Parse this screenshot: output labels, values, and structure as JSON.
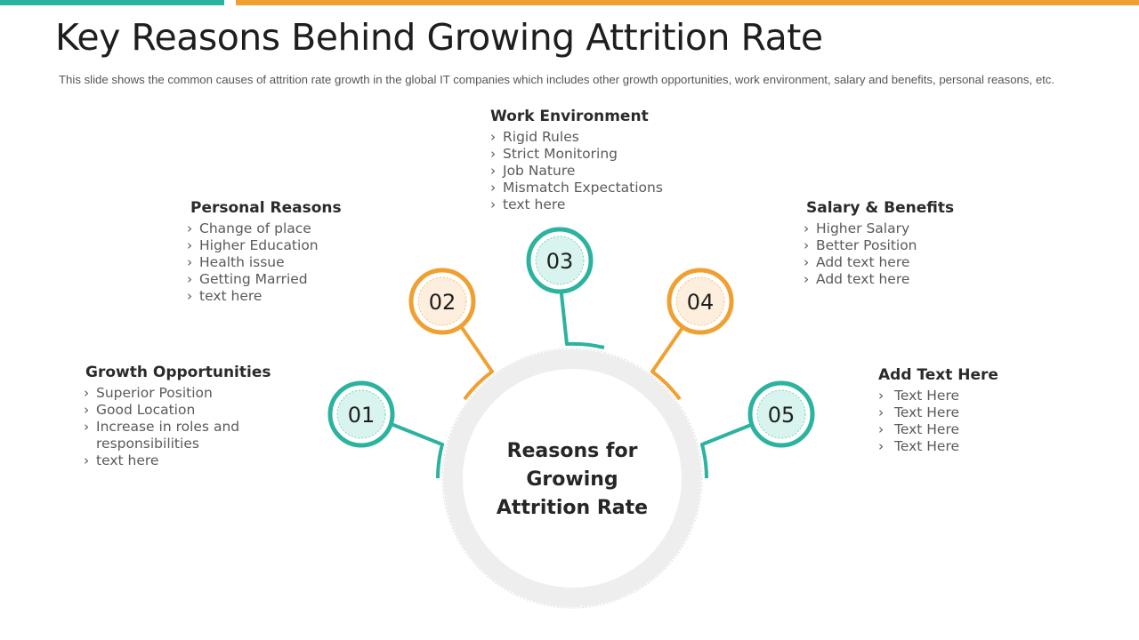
{
  "title": "Key Reasons Behind Growing Attrition Rate",
  "subtitle": "This slide shows the common causes of attrition rate growth in the global IT companies which includes other growth opportunities, work environment, salary and benefits, personal reasons, etc.",
  "colors": {
    "teal": "#2bb3a0",
    "orange": "#f0a030",
    "teal_fill": "#d9f4ee",
    "orange_fill": "#fdeedd",
    "ring": "#eeeeee"
  },
  "center": {
    "label": "Reasons for Growing Attrition Rate"
  },
  "nodes": [
    {
      "number": "01",
      "color": "teal"
    },
    {
      "number": "02",
      "color": "orange"
    },
    {
      "number": "03",
      "color": "teal"
    },
    {
      "number": "04",
      "color": "orange"
    },
    {
      "number": "05",
      "color": "teal"
    }
  ],
  "blocks": {
    "growth": {
      "title": "Growth Opportunities",
      "items": [
        "Superior Position",
        "Good Location",
        "Increase in roles and responsibilities",
        "text here"
      ]
    },
    "personal": {
      "title": "Personal Reasons",
      "items": [
        "Change of place",
        "Higher Education",
        "Health issue",
        "Getting Married",
        "text here"
      ]
    },
    "work": {
      "title": "Work Environment",
      "items": [
        "Rigid Rules",
        "Strict Monitoring",
        "Job Nature",
        "Mismatch Expectations",
        "text here"
      ]
    },
    "salary": {
      "title": "Salary & Benefits",
      "items": [
        "Higher Salary",
        "Better Position",
        "Add text here",
        "Add text here"
      ]
    },
    "add": {
      "title": "Add Text Here",
      "items": [
        "Text Here",
        "Text Here",
        "Text Here",
        "Text Here"
      ]
    }
  }
}
